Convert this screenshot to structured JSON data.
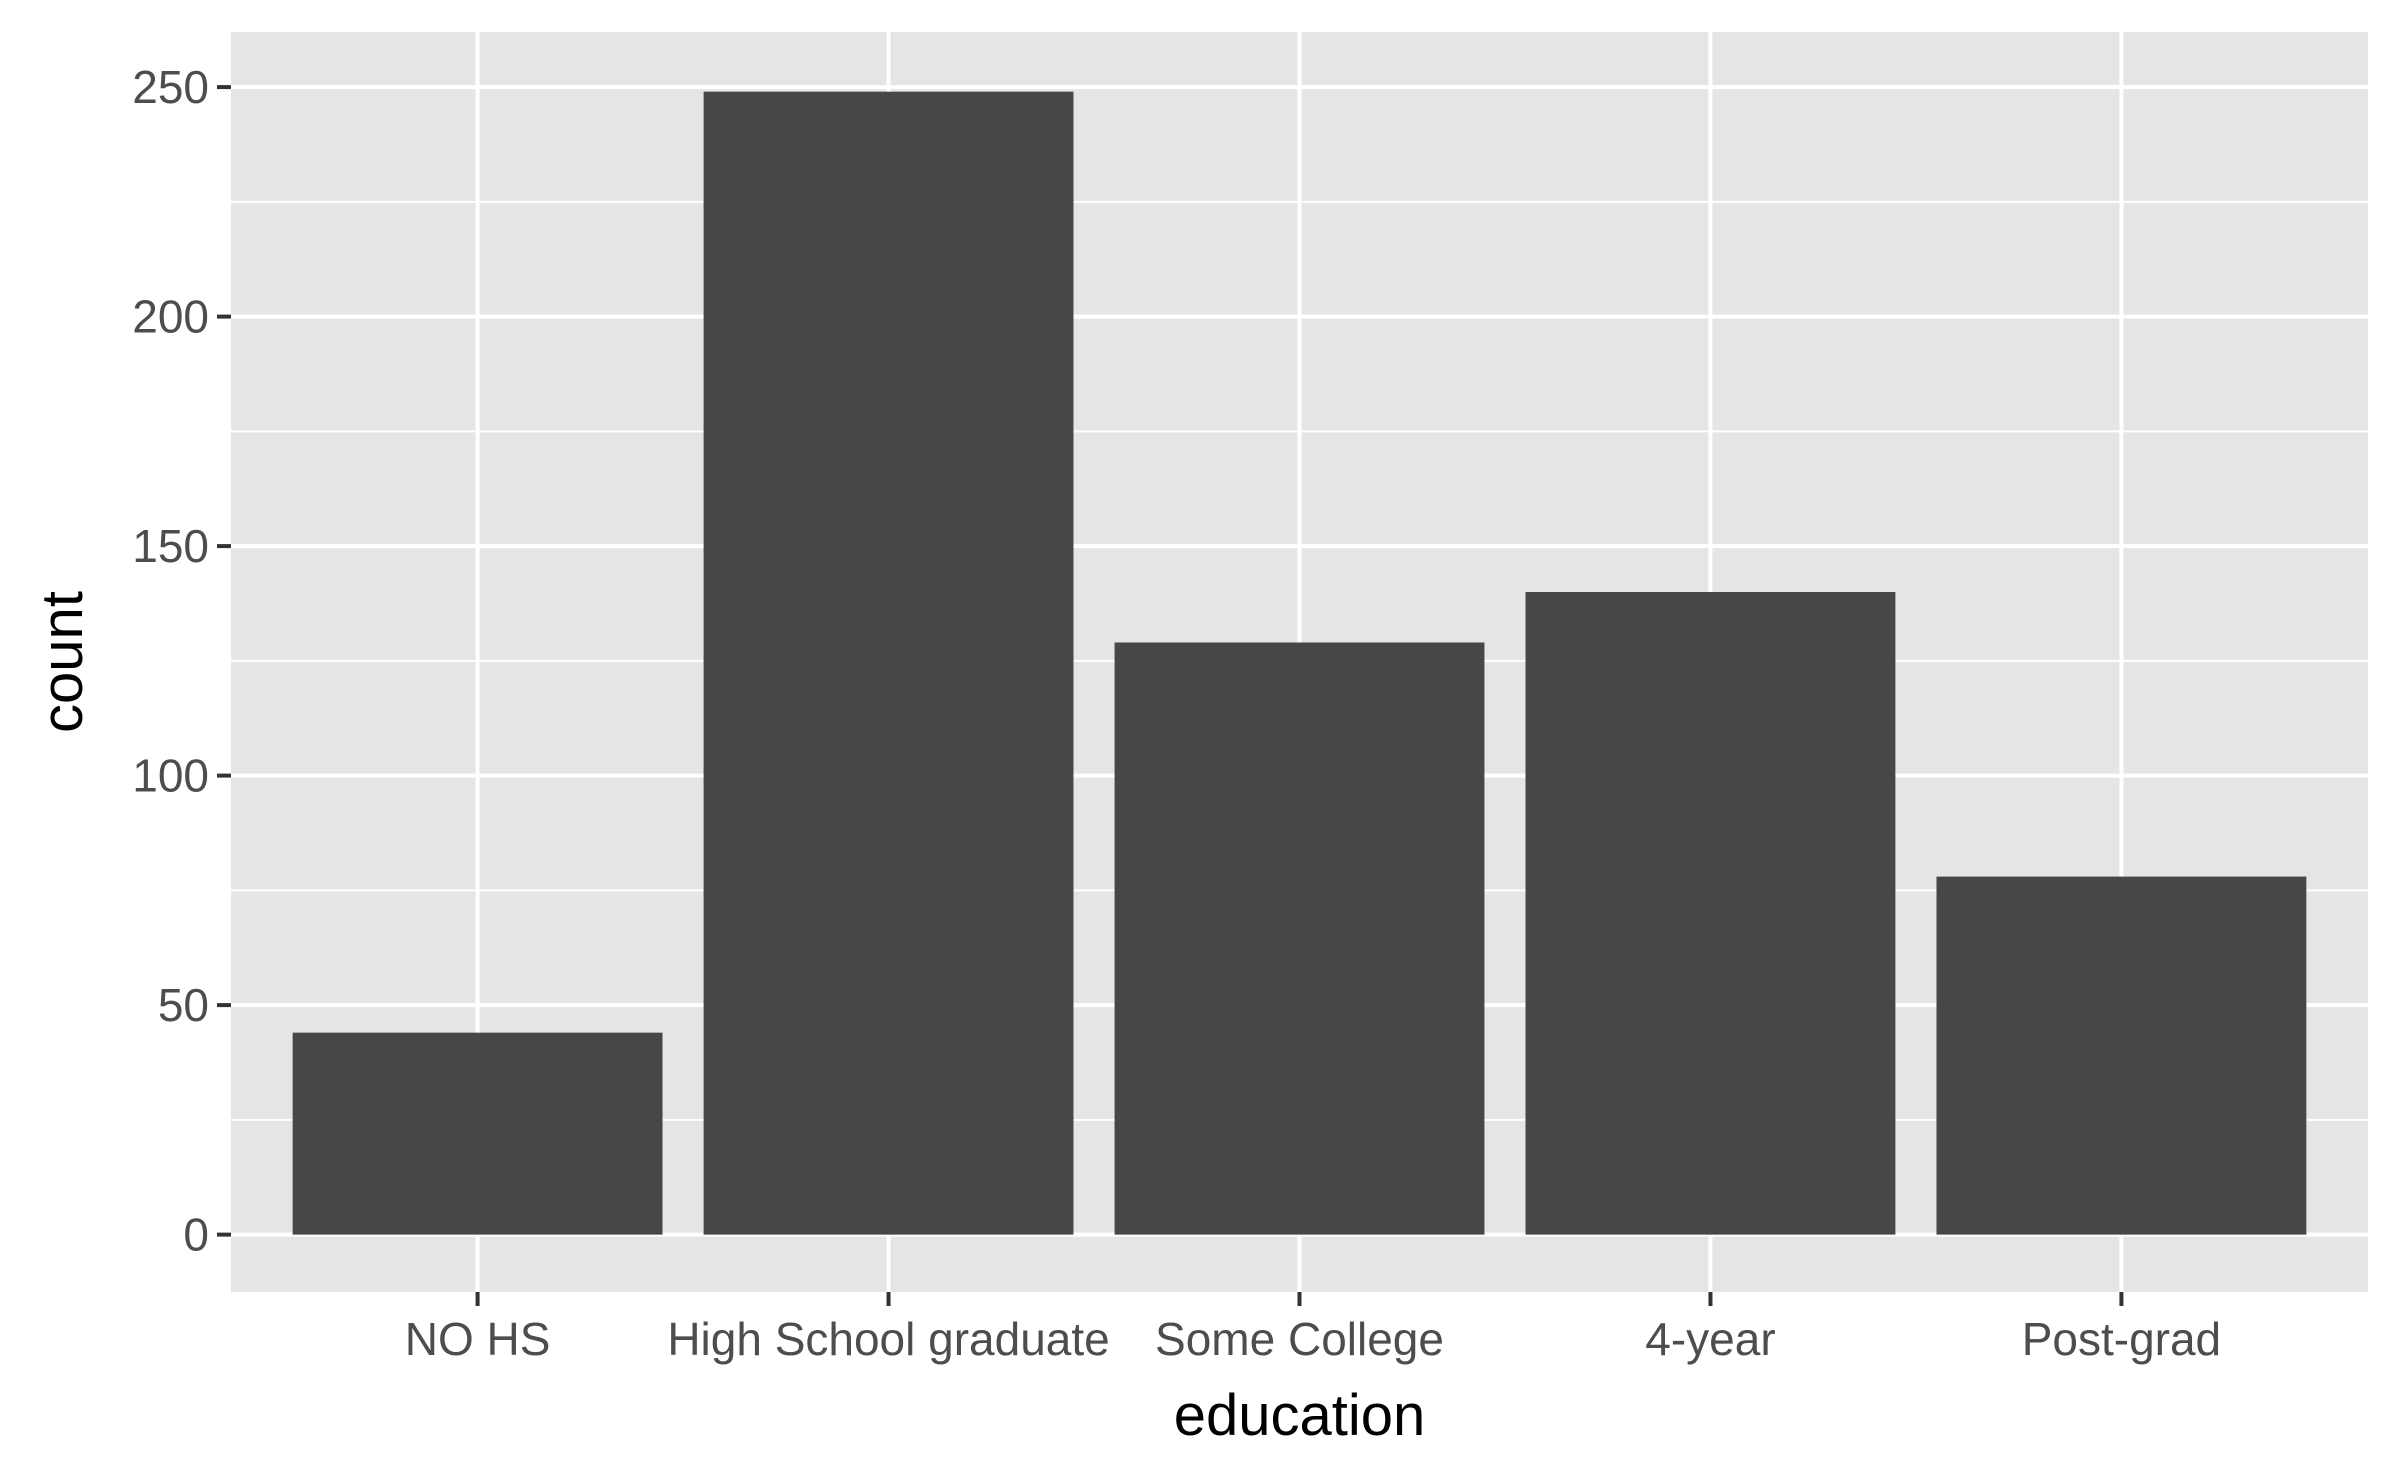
{
  "chart_data": {
    "type": "bar",
    "categories": [
      "NO HS",
      "High School graduate",
      "Some College",
      "4-year",
      "Post-grad"
    ],
    "values": [
      44,
      249,
      129,
      140,
      78
    ],
    "title": "",
    "xlabel": "education",
    "ylabel": "count",
    "ylim": [
      -12.5,
      262
    ],
    "yticks": [
      0,
      50,
      100,
      150,
      200,
      250
    ],
    "grid": true,
    "legend": "none",
    "colors": {
      "panel": "#e5e5e5",
      "grid": "#ffffff",
      "bar": "#474747",
      "tick_text": "#4d4d4d",
      "tick_mark": "#333333",
      "title_text": "#000000"
    }
  }
}
